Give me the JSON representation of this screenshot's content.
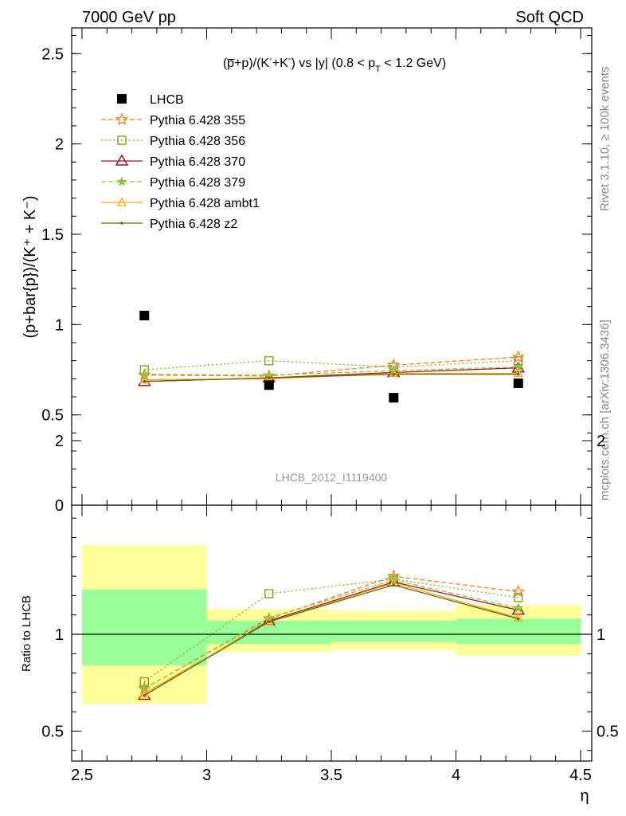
{
  "header": {
    "left": "7000 GeV pp",
    "right": "Soft QCD"
  },
  "side_texts": {
    "rivet": "Rivet 3.1.10, ≥ 100k events",
    "source": "mcplots.cern.ch [arXiv:1306.3436]"
  },
  "analysis_label": "LHCB_2012_I1119400",
  "colors": {
    "data": "#000000",
    "band_inner": "#99ff99",
    "band_outer": "#ffff99",
    "s355": "#ff7f27",
    "s356": "#8aa82a",
    "s370": "#a01626",
    "s379": "#8ec63f",
    "ambt1": "#f4a81e",
    "z2": "#6b6a00"
  },
  "chart_data": [
    {
      "type": "scatter",
      "title": "(p̅+p)/(K⁻+K⁻) vs |y| (0.8 < p_T < 1.2 GeV)",
      "ylabel": "(p+bar{p})/(K⁺ + K⁻)",
      "xlim": [
        2.5,
        4.5
      ],
      "ylim": [
        0,
        2.65
      ],
      "x_ticks": [
        "2.5",
        "3",
        "3.5",
        "4",
        "4.5"
      ],
      "y_ticks": [
        "0",
        "0.5",
        "1",
        "1.5",
        "2",
        "2.5"
      ],
      "legend_position": "top-left",
      "x": [
        2.75,
        3.25,
        3.75,
        4.25
      ],
      "series": [
        {
          "name": "LHCB",
          "values": [
            1.05,
            0.665,
            0.595,
            0.675
          ]
        },
        {
          "name": "Pythia 6.428 355",
          "values": [
            0.72,
            0.715,
            0.775,
            0.82
          ]
        },
        {
          "name": "Pythia 6.428 356",
          "values": [
            0.75,
            0.8,
            0.765,
            0.8
          ]
        },
        {
          "name": "Pythia 6.428 370",
          "values": [
            0.685,
            0.705,
            0.735,
            0.76
          ]
        },
        {
          "name": "Pythia 6.428 379",
          "values": [
            0.725,
            0.72,
            0.745,
            0.765
          ]
        },
        {
          "name": "Pythia 6.428 ambt1",
          "values": [
            0.695,
            0.7,
            0.73,
            0.73
          ]
        },
        {
          "name": "Pythia 6.428 z2",
          "values": [
            0.685,
            0.705,
            0.725,
            0.725
          ]
        }
      ]
    },
    {
      "type": "scatter",
      "ylabel": "Ratio to LHCB",
      "xlabel": "η",
      "xlim": [
        2.5,
        4.5
      ],
      "ylim": [
        0.35,
        2.3
      ],
      "y_ticks": [
        "0.5",
        "1",
        "2"
      ],
      "x": [
        2.75,
        3.25,
        3.75,
        4.25
      ],
      "reference_line": 1,
      "bands": [
        {
          "x": [
            2.5,
            3.0
          ],
          "inner": [
            0.84,
            1.23
          ],
          "outer": [
            0.64,
            1.46
          ]
        },
        {
          "x": [
            3.0,
            3.5
          ],
          "inner": [
            0.95,
            1.07
          ],
          "outer": [
            0.91,
            1.13
          ]
        },
        {
          "x": [
            3.5,
            4.0
          ],
          "inner": [
            0.96,
            1.07
          ],
          "outer": [
            0.92,
            1.12
          ]
        },
        {
          "x": [
            4.0,
            4.5
          ],
          "inner": [
            0.95,
            1.08
          ],
          "outer": [
            0.89,
            1.15
          ]
        }
      ],
      "series": [
        {
          "name": "Pythia 6.428 355",
          "values": [
            0.72,
            1.08,
            1.3,
            1.22
          ]
        },
        {
          "name": "Pythia 6.428 356",
          "values": [
            0.755,
            1.21,
            1.285,
            1.19
          ]
        },
        {
          "name": "Pythia 6.428 370",
          "values": [
            0.685,
            1.07,
            1.27,
            1.125
          ]
        },
        {
          "name": "Pythia 6.428 379",
          "values": [
            0.72,
            1.085,
            1.28,
            1.135
          ]
        },
        {
          "name": "Pythia 6.428 ambt1",
          "values": [
            0.695,
            1.065,
            1.265,
            1.085
          ]
        },
        {
          "name": "Pythia 6.428 z2",
          "values": [
            0.685,
            1.065,
            1.255,
            1.08
          ]
        }
      ]
    }
  ]
}
